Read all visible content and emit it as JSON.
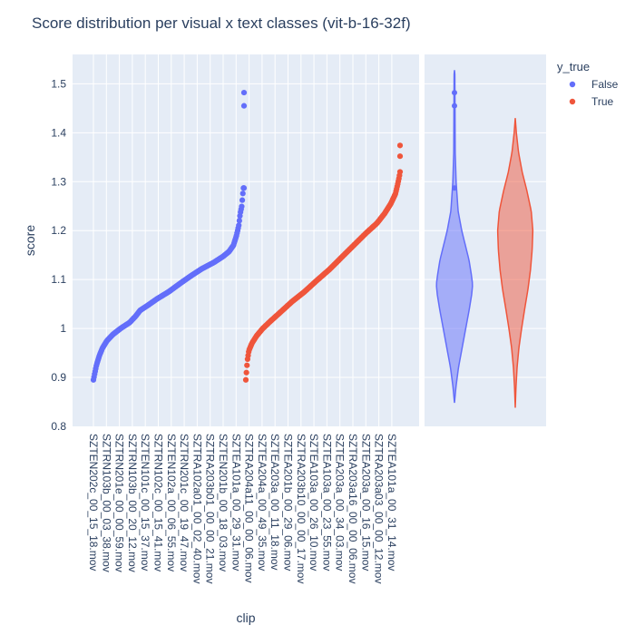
{
  "chart_data": {
    "type": "scatter",
    "title": "Score distribution per visual x text classes (vit-b-16-32f)",
    "xlabel": "clip",
    "ylabel": "score",
    "ylim": [
      0.8,
      1.56
    ],
    "yticks": [
      0.8,
      0.9,
      1,
      1.1,
      1.2,
      1.3,
      1.4,
      1.5
    ],
    "xticklabels": [
      "SZTEN202c_00_15_18.mov",
      "SZTRN103b_00_03_38.mov",
      "SZTRN201e_00_00_59.mov",
      "SZTRN103b_00_20_12.mov",
      "SZTEN101c_00_15_37.mov",
      "SZTRN102c_00_15_41.mov",
      "SZTEN102a_00_06_55.mov",
      "SZTRN201c_00_19_47.mov",
      "SZTRA102a01_00_02_40.mov",
      "SZTRA203b01_00_00_21.mov",
      "SZTEN201b_00_18_03.mov",
      "SZTEA101a_00_29_31.mov",
      "SZTRA204a11_00_00_06.mov",
      "SZTEA204a_00_49_35.mov",
      "SZTEA203a_00_11_18.mov",
      "SZTEA201b_00_29_06.mov",
      "SZTRA203b10_00_00_17.mov",
      "SZTEA103a_00_26_10.mov",
      "SZTEA103a_00_23_55.mov",
      "SZTEA203a_00_34_03.mov",
      "SZTRA203a16_00_00_06.mov",
      "SZTEA203a_00_16_15.mov",
      "SZTRA203a03_00_00_12.mov",
      "SZTEA101a_00_31_14.mov"
    ],
    "legend": {
      "title": "y_true",
      "position": "top-right",
      "entries": [
        {
          "name": "False",
          "color": "#636efa"
        },
        {
          "name": "True",
          "color": "#ef553b"
        }
      ]
    },
    "series": [
      {
        "name": "False",
        "color": "#636efa",
        "curve_profile": [
          [
            0,
            0.895
          ],
          [
            0.01,
            0.91
          ],
          [
            0.02,
            0.925
          ],
          [
            0.04,
            0.945
          ],
          [
            0.06,
            0.96
          ],
          [
            0.09,
            0.975
          ],
          [
            0.13,
            0.988
          ],
          [
            0.18,
            1.0
          ],
          [
            0.24,
            1.012
          ],
          [
            0.28,
            1.025
          ],
          [
            0.31,
            1.037
          ],
          [
            0.36,
            1.047
          ],
          [
            0.42,
            1.06
          ],
          [
            0.5,
            1.075
          ],
          [
            0.58,
            1.093
          ],
          [
            0.65,
            1.108
          ],
          [
            0.72,
            1.122
          ],
          [
            0.8,
            1.135
          ],
          [
            0.86,
            1.147
          ],
          [
            0.9,
            1.157
          ],
          [
            0.93,
            1.17
          ],
          [
            0.95,
            1.19
          ],
          [
            0.965,
            1.21
          ],
          [
            0.975,
            1.235
          ],
          [
            0.985,
            1.25
          ],
          [
            0.992,
            1.275
          ],
          [
            0.996,
            1.287
          ],
          [
            1.0,
            1.287
          ]
        ],
        "outliers": [
          1.455,
          1.482
        ],
        "violin": {
          "min": 0.848,
          "max": 1.528,
          "profile": [
            [
              0.848,
              0.0
            ],
            [
              0.88,
              0.08
            ],
            [
              0.92,
              0.22
            ],
            [
              0.96,
              0.42
            ],
            [
              1.0,
              0.62
            ],
            [
              1.04,
              0.82
            ],
            [
              1.07,
              0.95
            ],
            [
              1.09,
              1.0
            ],
            [
              1.11,
              0.93
            ],
            [
              1.14,
              0.8
            ],
            [
              1.17,
              0.6
            ],
            [
              1.2,
              0.4
            ],
            [
              1.24,
              0.2
            ],
            [
              1.3,
              0.09
            ],
            [
              1.36,
              0.04
            ],
            [
              1.45,
              0.03
            ],
            [
              1.52,
              0.02
            ],
            [
              1.528,
              0.0
            ]
          ],
          "points": [
            1.287,
            1.455,
            1.482
          ]
        }
      },
      {
        "name": "True",
        "color": "#ef553b",
        "curve_profile": [
          [
            0,
            0.895
          ],
          [
            0.01,
            0.935
          ],
          [
            0.02,
            0.955
          ],
          [
            0.04,
            0.97
          ],
          [
            0.07,
            0.985
          ],
          [
            0.11,
            1.0
          ],
          [
            0.16,
            1.015
          ],
          [
            0.22,
            1.032
          ],
          [
            0.3,
            1.055
          ],
          [
            0.38,
            1.075
          ],
          [
            0.46,
            1.098
          ],
          [
            0.54,
            1.12
          ],
          [
            0.62,
            1.145
          ],
          [
            0.7,
            1.17
          ],
          [
            0.78,
            1.195
          ],
          [
            0.85,
            1.215
          ],
          [
            0.9,
            1.235
          ],
          [
            0.94,
            1.255
          ],
          [
            0.97,
            1.275
          ],
          [
            0.985,
            1.295
          ],
          [
            0.995,
            1.31
          ],
          [
            1.0,
            1.32
          ]
        ],
        "outliers": [
          1.352,
          1.374
        ],
        "violin": {
          "min": 0.838,
          "max": 1.43,
          "profile": [
            [
              0.838,
              0.0
            ],
            [
              0.88,
              0.04
            ],
            [
              0.92,
              0.1
            ],
            [
              0.96,
              0.2
            ],
            [
              1.0,
              0.35
            ],
            [
              1.04,
              0.52
            ],
            [
              1.08,
              0.7
            ],
            [
              1.12,
              0.84
            ],
            [
              1.16,
              0.93
            ],
            [
              1.2,
              0.97
            ],
            [
              1.24,
              0.88
            ],
            [
              1.28,
              0.65
            ],
            [
              1.32,
              0.38
            ],
            [
              1.36,
              0.18
            ],
            [
              1.4,
              0.06
            ],
            [
              1.43,
              0.0
            ]
          ],
          "points": []
        }
      }
    ]
  }
}
